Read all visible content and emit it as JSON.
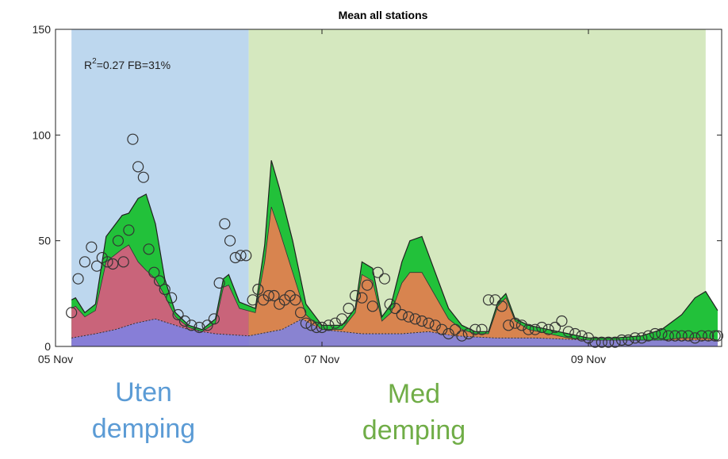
{
  "chart_data": {
    "type": "area",
    "title": "Mean all stations",
    "xlabel": "",
    "ylabel": "",
    "ylim": [
      0,
      150
    ],
    "xlim_days": [
      5.0,
      10.0
    ],
    "x_ticks": [
      {
        "day": 5,
        "label": "05 Nov"
      },
      {
        "day": 7,
        "label": "07 Nov"
      },
      {
        "day": 9,
        "label": "09 Nov"
      }
    ],
    "y_ticks": [
      0,
      50,
      100,
      150
    ],
    "grid": false,
    "annotation": {
      "prefix": "R",
      "sup": "2",
      "suffix": "=0.27 FB=31%"
    },
    "periods": [
      {
        "name": "Uten demping",
        "start_day": 5.12,
        "end_day": 6.45,
        "color": "#bdd7ee"
      },
      {
        "name": "Med demping",
        "start_day": 6.45,
        "end_day": 9.88,
        "color": "#d5e8bf"
      }
    ],
    "captions": {
      "left": [
        "Uten",
        "demping"
      ],
      "right": [
        "Med",
        "demping"
      ]
    },
    "layers_total": {
      "x": [
        5.12,
        5.15,
        5.22,
        5.3,
        5.38,
        5.5,
        5.55,
        5.62,
        5.68,
        5.75,
        5.82,
        5.9,
        6.0,
        6.1,
        6.2,
        6.26,
        6.3,
        6.38,
        6.5,
        6.57,
        6.62,
        6.68,
        6.78,
        6.88,
        7.0,
        7.15,
        7.25,
        7.3,
        7.38,
        7.45,
        7.52,
        7.6,
        7.66,
        7.75,
        7.85,
        7.95,
        8.05,
        8.15,
        8.25,
        8.32,
        8.38,
        8.45,
        8.55,
        8.7,
        8.85,
        9.0,
        9.2,
        9.4,
        9.55,
        9.7,
        9.8,
        9.88,
        9.97
      ],
      "y": [
        22,
        23,
        16,
        20,
        52,
        62,
        63,
        70,
        72,
        58,
        32,
        16,
        10,
        8,
        13,
        32,
        34,
        21,
        18,
        48,
        88,
        75,
        50,
        20,
        10,
        10,
        18,
        40,
        37,
        14,
        20,
        40,
        50,
        52,
        35,
        18,
        10,
        7,
        7,
        21,
        25,
        13,
        10,
        8,
        6,
        4,
        4,
        5,
        8,
        15,
        23,
        26,
        17
      ],
      "color": "#22c13a"
    },
    "layers_pm": {
      "x": [
        5.12,
        5.15,
        5.22,
        5.3,
        5.38,
        5.5,
        5.55,
        5.62,
        5.68,
        5.75,
        5.82,
        5.9,
        6.0,
        6.1,
        6.2,
        6.26,
        6.3,
        6.38,
        6.5,
        6.57,
        6.62,
        6.68,
        6.78,
        6.88,
        7.0,
        7.15,
        7.25,
        7.3,
        7.38,
        7.45,
        7.52,
        7.6,
        7.66,
        7.75,
        7.85,
        7.95,
        8.05,
        8.15,
        8.25,
        8.32,
        8.38,
        8.45,
        8.55,
        8.7,
        8.85,
        9.0,
        9.2,
        9.4,
        9.55,
        9.7,
        9.8,
        9.88,
        9.97
      ],
      "y": [
        18,
        19,
        14,
        17,
        40,
        46,
        48,
        40,
        36,
        32,
        24,
        14,
        9,
        7,
        11,
        28,
        29,
        18,
        16,
        40,
        66,
        55,
        35,
        15,
        8,
        8,
        16,
        34,
        31,
        12,
        16,
        30,
        35,
        35,
        24,
        13,
        8,
        6,
        6,
        19,
        23,
        12,
        8,
        6,
        4,
        3,
        3,
        3,
        3,
        4,
        4,
        4,
        3
      ],
      "color_before": "#c9647a",
      "color_after": "#d8844f"
    },
    "layers_base": {
      "x": [
        5.12,
        5.3,
        5.45,
        5.6,
        5.75,
        5.85,
        6.0,
        6.2,
        6.45,
        6.7,
        6.85,
        7.0,
        7.3,
        7.6,
        7.8,
        8.0,
        8.3,
        8.6,
        9.0,
        9.5,
        9.88,
        9.97
      ],
      "y": [
        4,
        6,
        8,
        11,
        13,
        11,
        8,
        6,
        5,
        8,
        13,
        8,
        6,
        6,
        7,
        5,
        4,
        4,
        3,
        3,
        3,
        3
      ],
      "color": "#7b83e8"
    },
    "observed": {
      "x": [
        5.12,
        5.17,
        5.22,
        5.27,
        5.31,
        5.35,
        5.39,
        5.43,
        5.47,
        5.51,
        5.55,
        5.58,
        5.62,
        5.66,
        5.7,
        5.74,
        5.78,
        5.82,
        5.87,
        5.92,
        5.97,
        6.02,
        6.08,
        6.14,
        6.19,
        6.23,
        6.27,
        6.31,
        6.35,
        6.39,
        6.43,
        6.48,
        6.52,
        6.56,
        6.6,
        6.64,
        6.68,
        6.72,
        6.76,
        6.8,
        6.84,
        6.88,
        6.92,
        6.96,
        7.0,
        7.05,
        7.1,
        7.15,
        7.2,
        7.25,
        7.3,
        7.34,
        7.38,
        7.42,
        7.47,
        7.51,
        7.55,
        7.6,
        7.65,
        7.7,
        7.75,
        7.8,
        7.85,
        7.9,
        7.95,
        8.0,
        8.05,
        8.1,
        8.15,
        8.2,
        8.25,
        8.3,
        8.35,
        8.4,
        8.45,
        8.5,
        8.55,
        8.6,
        8.65,
        8.7,
        8.75,
        8.8,
        8.85,
        8.9,
        8.95,
        9.0,
        9.05,
        9.1,
        9.15,
        9.2,
        9.25,
        9.3,
        9.35,
        9.4,
        9.45,
        9.5,
        9.55,
        9.6,
        9.65,
        9.7,
        9.75,
        9.8,
        9.85,
        9.9,
        9.95,
        9.97
      ],
      "y": [
        16,
        32,
        40,
        47,
        38,
        42,
        40,
        39,
        50,
        40,
        55,
        98,
        85,
        80,
        46,
        35,
        31,
        27,
        23,
        15,
        12,
        10,
        9,
        10,
        13,
        30,
        58,
        50,
        42,
        43,
        43,
        22,
        27,
        22,
        24,
        24,
        20,
        22,
        24,
        22,
        16,
        11,
        10,
        9,
        9,
        10,
        11,
        13,
        18,
        24,
        23,
        29,
        19,
        35,
        32,
        20,
        18,
        15,
        14,
        13,
        12,
        11,
        10,
        8,
        6,
        8,
        5,
        6,
        8,
        8,
        22,
        22,
        19,
        10,
        11,
        10,
        8,
        8,
        9,
        8,
        9,
        12,
        7,
        6,
        5,
        4,
        2,
        2,
        2,
        2,
        3,
        3,
        4,
        4,
        5,
        6,
        6,
        5,
        5,
        5,
        5,
        4,
        5,
        5,
        5,
        5
      ]
    }
  }
}
